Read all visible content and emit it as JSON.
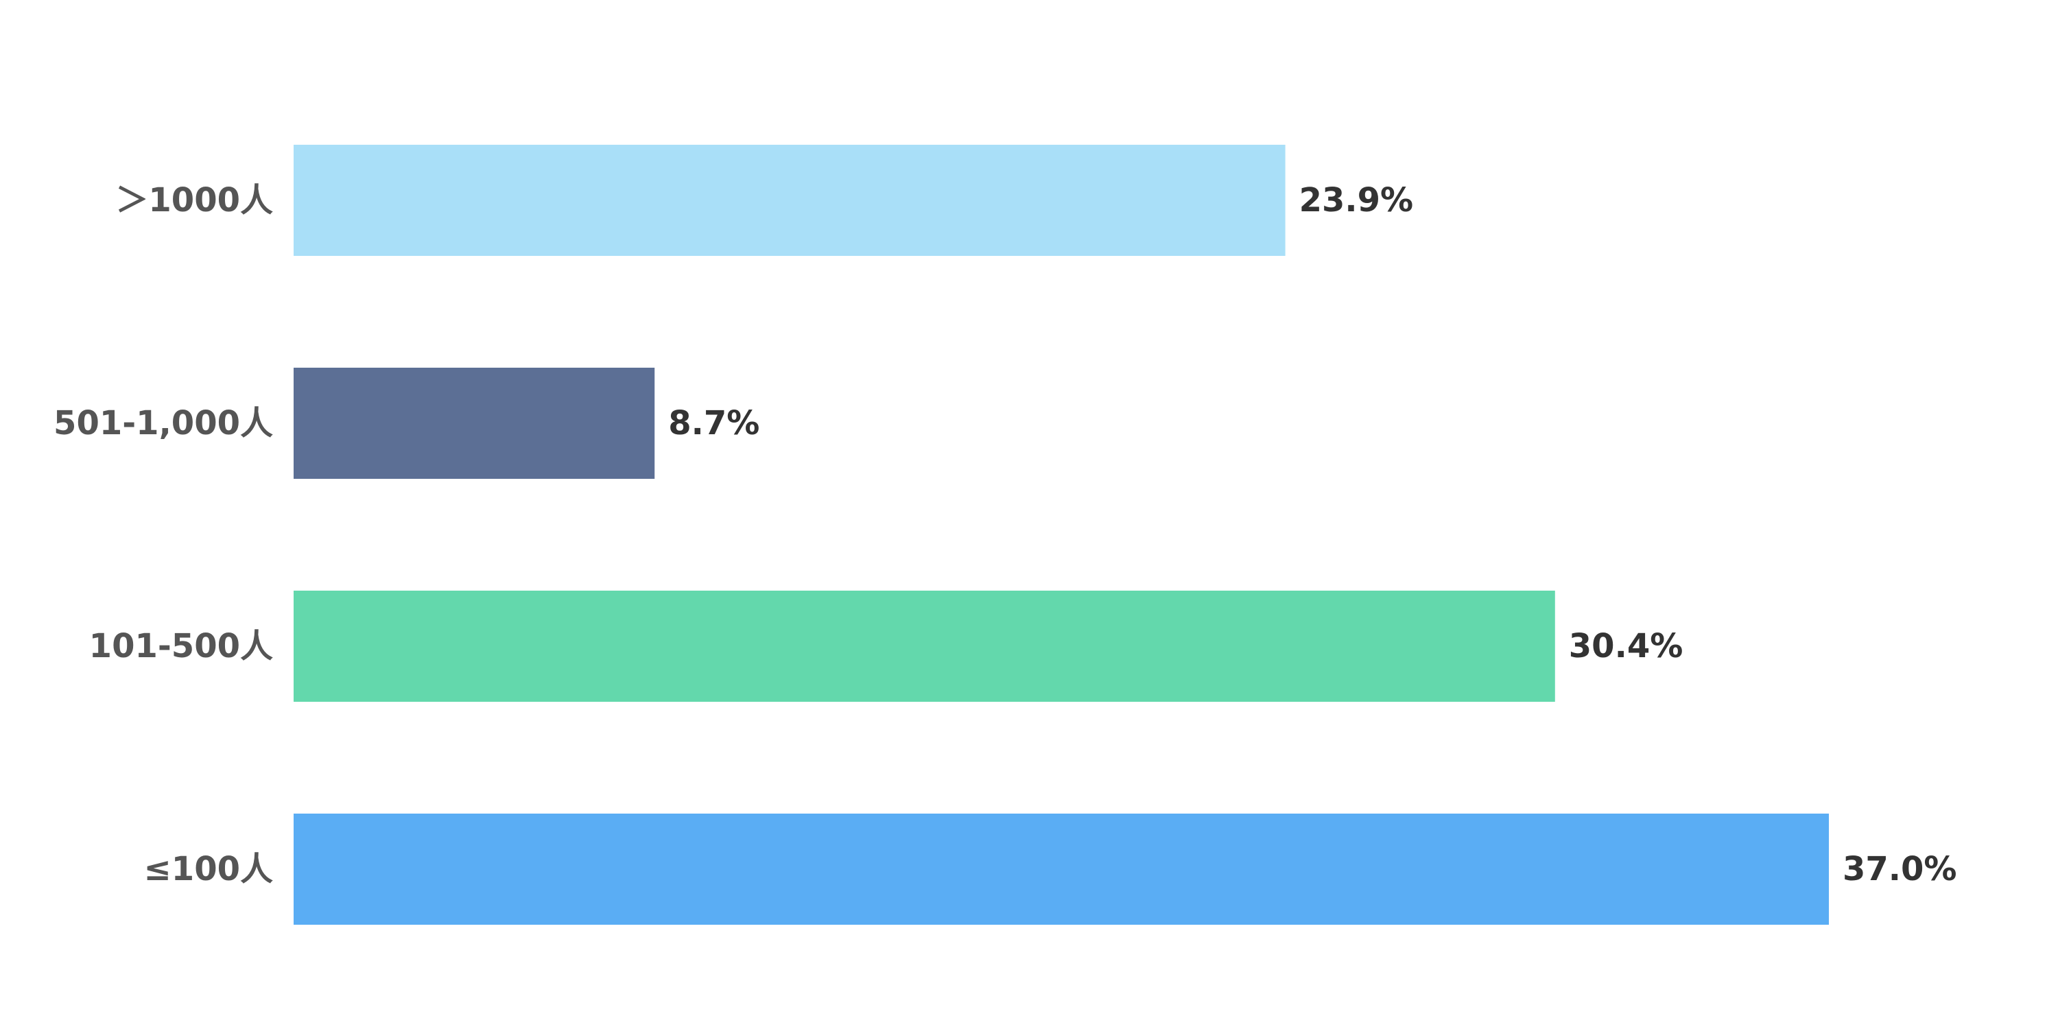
{
  "chart_data": {
    "type": "bar",
    "orientation": "horizontal",
    "categories": [
      "＞1000人",
      "501-1,000人",
      "101-500人",
      "≤100人"
    ],
    "values": [
      23.9,
      8.7,
      30.4,
      37.0
    ],
    "value_labels": [
      "23.9%",
      "8.7%",
      "30.4%",
      "37.0%"
    ],
    "colors": [
      "#a9dff8",
      "#5c6f95",
      "#63d8ac",
      "#5aadf4"
    ],
    "xlim": [
      0,
      37.0
    ],
    "grid": false,
    "legend": "none",
    "title": "",
    "xlabel": "",
    "ylabel": ""
  }
}
